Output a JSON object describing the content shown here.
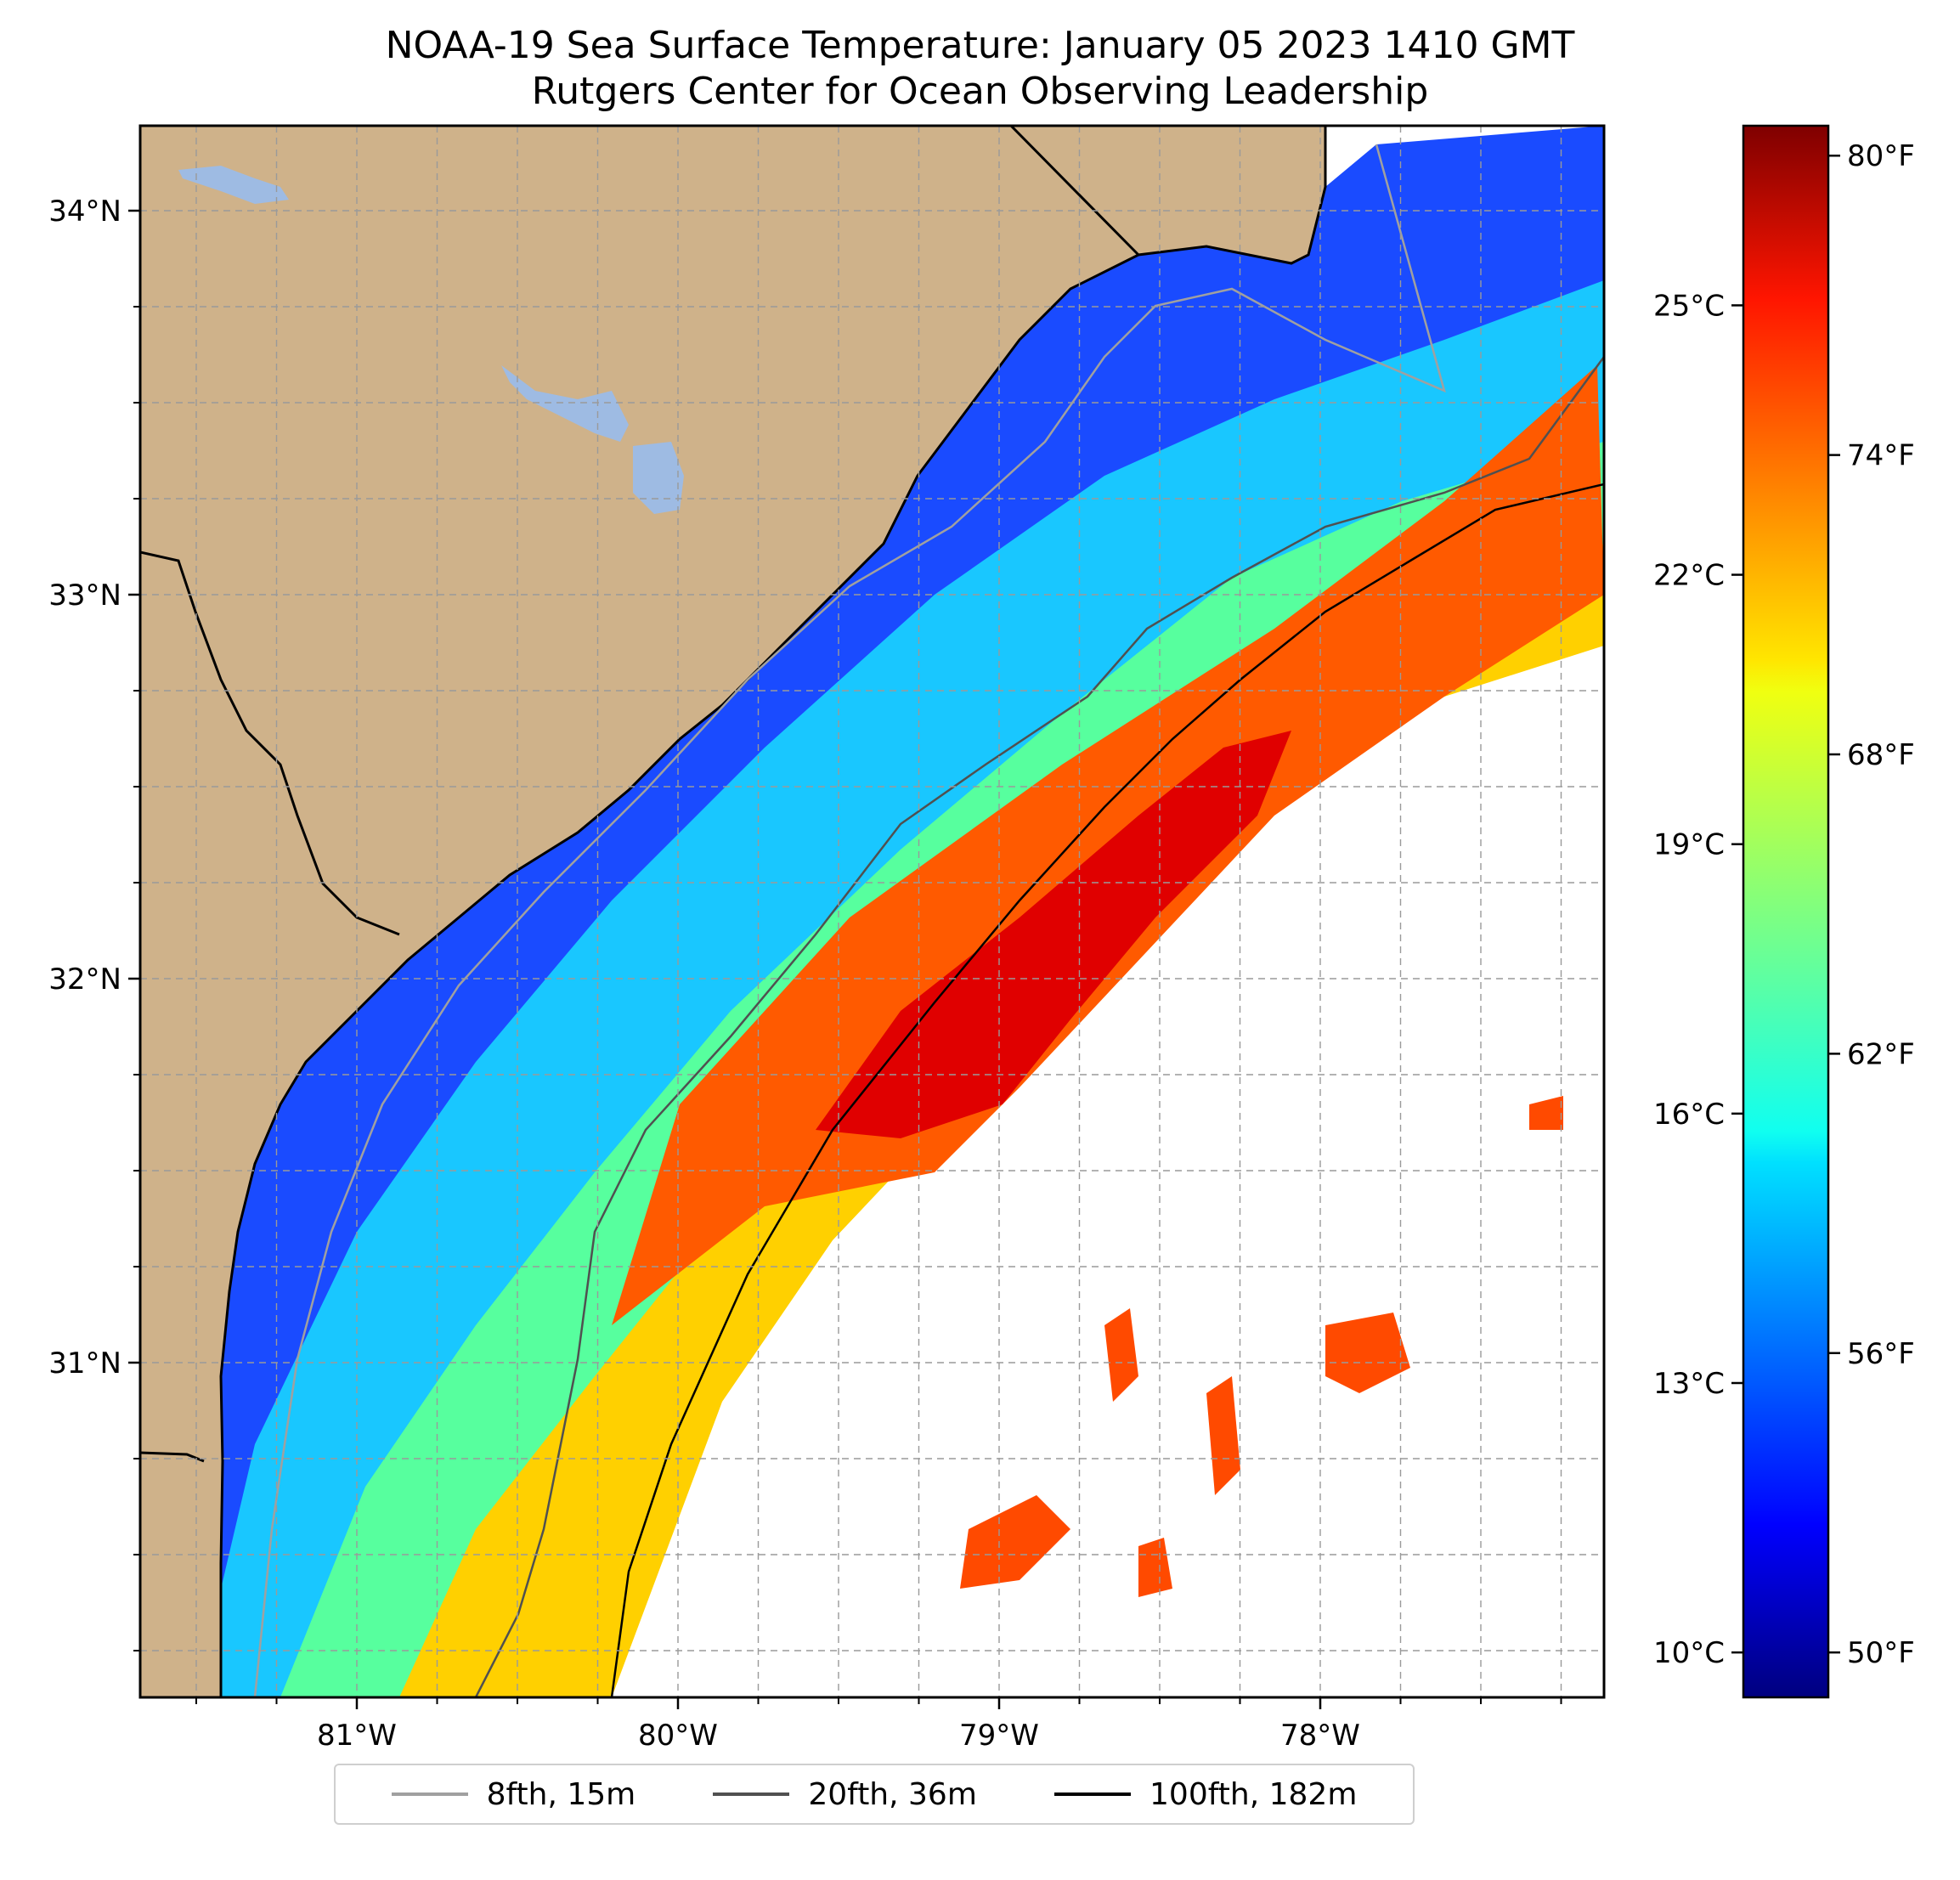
{
  "title": {
    "line1": "NOAA-19 Sea Surface Temperature: January 05 2023 1410 GMT",
    "line2": "Rutgers Center for Ocean Observing Leadership"
  },
  "map": {
    "land_color": "#cfb28a",
    "water_body_color": "#9ebbe3",
    "no_data_color": "#ffffff",
    "lon_ticks": [
      {
        "value": -81,
        "label": "81°W"
      },
      {
        "value": -80,
        "label": "80°W"
      },
      {
        "value": -79,
        "label": "79°W"
      },
      {
        "value": -78,
        "label": "78°W"
      }
    ],
    "lat_ticks": [
      {
        "value": 34,
        "label": "34°N"
      },
      {
        "value": 33,
        "label": "33°N"
      },
      {
        "value": 32,
        "label": "32°N"
      },
      {
        "value": 31,
        "label": "31°N"
      }
    ],
    "gridlines": "dashed"
  },
  "colorbar": {
    "colormap": "jet",
    "min_c": 9.5,
    "max_c": 27.0,
    "celsius_ticks": [
      {
        "value": 10,
        "label": "10°C"
      },
      {
        "value": 13,
        "label": "13°C"
      },
      {
        "value": 16,
        "label": "16°C"
      },
      {
        "value": 19,
        "label": "19°C"
      },
      {
        "value": 22,
        "label": "22°C"
      },
      {
        "value": 25,
        "label": "25°C"
      }
    ],
    "fahrenheit_ticks": [
      {
        "value": 50,
        "label": "50°F"
      },
      {
        "value": 56,
        "label": "56°F"
      },
      {
        "value": 62,
        "label": "62°F"
      },
      {
        "value": 68,
        "label": "68°F"
      },
      {
        "value": 74,
        "label": "74°F"
      },
      {
        "value": 80,
        "label": "80°F"
      }
    ]
  },
  "legend": {
    "items": [
      {
        "label": "8fth, 15m",
        "color": "#a0a0a0"
      },
      {
        "label": "20fth, 36m",
        "color": "#505050"
      },
      {
        "label": "100fth, 182m",
        "color": "#000000"
      }
    ]
  }
}
